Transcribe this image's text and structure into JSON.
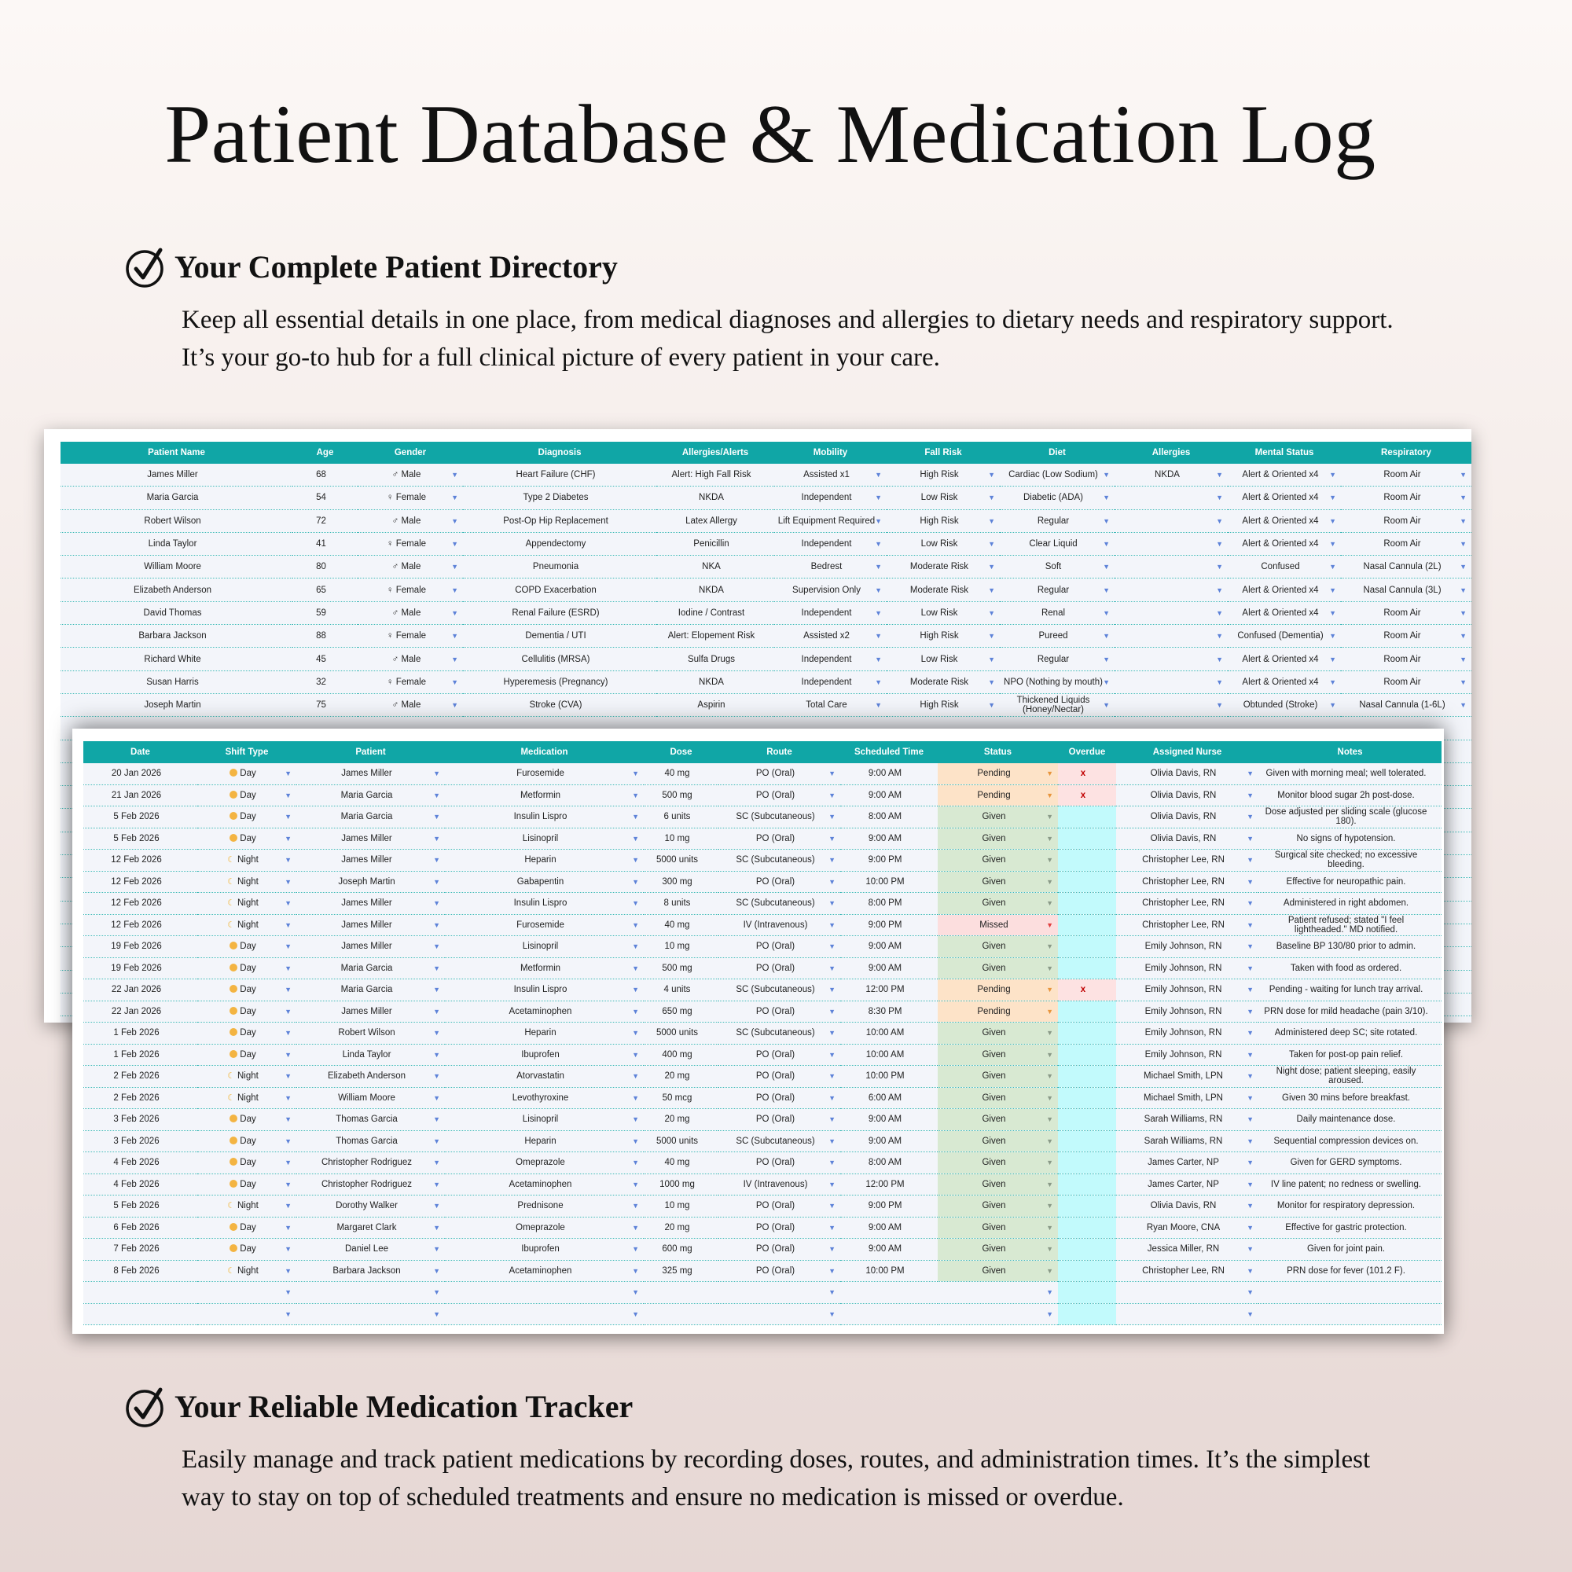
{
  "title": "Patient Database & Medication Log",
  "section1": {
    "heading": "Your Complete Patient Directory",
    "text": "Keep all essential details in one place, from medical diagnoses and allergies to dietary needs and respiratory support. It’s your go-to hub for a full clinical picture of every patient in your care."
  },
  "section2": {
    "heading": "Your Reliable Medication Tracker",
    "text": "Easily manage and track patient medications by recording doses, routes, and administration times. It’s the simplest way to stay on top of scheduled treatments and ensure no medication is missed or overdue."
  },
  "icons": {
    "section": "check-circle-icon",
    "dropdown": "dropdown-arrow-icon",
    "day": "sun-icon",
    "night": "moon-icon"
  },
  "colors": {
    "header": "#10a6a6",
    "pending": "#fde3c8",
    "given": "#d8e9d2",
    "missed": "#fcdede",
    "overdue": "#c2fafc",
    "overdue_flag": "#c00000"
  },
  "patients": {
    "columns": [
      "Patient Name",
      "Age",
      "Gender",
      "Diagnosis",
      "Allergies/Alerts",
      "Mobility",
      "Fall Risk",
      "Diet",
      "Allergies",
      "Mental Status",
      "Respiratory"
    ],
    "rows": [
      [
        "James Miller",
        "68",
        "♂ Male",
        "Heart Failure (CHF)",
        "Alert: High Fall Risk",
        "Assisted x1",
        "High Risk",
        "Cardiac (Low Sodium)",
        "NKDA",
        "Alert & Oriented x4",
        "Room Air"
      ],
      [
        "Maria Garcia",
        "54",
        "♀ Female",
        "Type 2 Diabetes",
        "NKDA",
        "Independent",
        "Low Risk",
        "Diabetic (ADA)",
        "",
        "Alert & Oriented x4",
        "Room Air"
      ],
      [
        "Robert Wilson",
        "72",
        "♂ Male",
        "Post-Op Hip Replacement",
        "Latex Allergy",
        "Lift Equipment Required",
        "High Risk",
        "Regular",
        "",
        "Alert & Oriented x4",
        "Room Air"
      ],
      [
        "Linda Taylor",
        "41",
        "♀ Female",
        "Appendectomy",
        "Penicillin",
        "Independent",
        "Low Risk",
        "Clear Liquid",
        "",
        "Alert & Oriented x4",
        "Room Air"
      ],
      [
        "William Moore",
        "80",
        "♂ Male",
        "Pneumonia",
        "NKA",
        "Bedrest",
        "Moderate Risk",
        "Soft",
        "",
        "Confused",
        "Nasal Cannula (2L)"
      ],
      [
        "Elizabeth Anderson",
        "65",
        "♀ Female",
        "COPD Exacerbation",
        "NKDA",
        "Supervision Only",
        "Moderate Risk",
        "Regular",
        "",
        "Alert & Oriented x4",
        "Nasal Cannula (3L)"
      ],
      [
        "David Thomas",
        "59",
        "♂ Male",
        "Renal Failure (ESRD)",
        "Iodine / Contrast",
        "Independent",
        "Low Risk",
        "Renal",
        "",
        "Alert & Oriented x4",
        "Room Air"
      ],
      [
        "Barbara Jackson",
        "88",
        "♀ Female",
        "Dementia / UTI",
        "Alert: Elopement Risk",
        "Assisted x2",
        "High Risk",
        "Pureed",
        "",
        "Confused (Dementia)",
        "Room Air"
      ],
      [
        "Richard White",
        "45",
        "♂ Male",
        "Cellulitis (MRSA)",
        "Sulfa Drugs",
        "Independent",
        "Low Risk",
        "Regular",
        "",
        "Alert & Oriented x4",
        "Room Air"
      ],
      [
        "Susan Harris",
        "32",
        "♀ Female",
        "Hyperemesis (Pregnancy)",
        "NKDA",
        "Independent",
        "Moderate Risk",
        "NPO (Nothing by mouth)",
        "",
        "Alert & Oriented x4",
        "Room Air"
      ],
      [
        "Joseph Martin",
        "75",
        "♂ Male",
        "Stroke (CVA)",
        "Aspirin",
        "Total Care",
        "High Risk",
        "Thickened Liquids (Honey/Nectar)",
        "",
        "Obtunded (Stroke)",
        "Nasal Cannula (1-6L)"
      ]
    ]
  },
  "medications": {
    "columns": [
      "Date",
      "Shift Type",
      "Patient",
      "Medication",
      "Dose",
      "Route",
      "Scheduled Time",
      "Status",
      "Overdue",
      "Assigned Nurse",
      "Notes"
    ],
    "overdue_mark": "x",
    "rows": [
      [
        "20 Jan 2026",
        "Day",
        "James Miller",
        "Furosemide",
        "40 mg",
        "PO (Oral)",
        "9:00 AM",
        "Pending",
        "x",
        "Olivia Davis, RN",
        "Given with morning meal; well tolerated."
      ],
      [
        "21 Jan 2026",
        "Day",
        "Maria Garcia",
        "Metformin",
        "500 mg",
        "PO (Oral)",
        "9:00 AM",
        "Pending",
        "x",
        "Olivia Davis, RN",
        "Monitor blood sugar 2h post-dose."
      ],
      [
        "5 Feb 2026",
        "Day",
        "Maria Garcia",
        "Insulin Lispro",
        "6 units",
        "SC (Subcutaneous)",
        "8:00 AM",
        "Given",
        "",
        "Olivia Davis, RN",
        "Dose adjusted per sliding scale (glucose 180)."
      ],
      [
        "5 Feb 2026",
        "Day",
        "James Miller",
        "Lisinopril",
        "10 mg",
        "PO (Oral)",
        "9:00 AM",
        "Given",
        "",
        "Olivia Davis, RN",
        "No signs of hypotension."
      ],
      [
        "12 Feb 2026",
        "Night",
        "James Miller",
        "Heparin",
        "5000 units",
        "SC (Subcutaneous)",
        "9:00 PM",
        "Given",
        "",
        "Christopher Lee, RN",
        "Surgical site checked; no excessive bleeding."
      ],
      [
        "12 Feb 2026",
        "Night",
        "Joseph Martin",
        "Gabapentin",
        "300 mg",
        "PO (Oral)",
        "10:00 PM",
        "Given",
        "",
        "Christopher Lee, RN",
        "Effective for neuropathic pain."
      ],
      [
        "12 Feb 2026",
        "Night",
        "James Miller",
        "Insulin Lispro",
        "8 units",
        "SC (Subcutaneous)",
        "8:00 PM",
        "Given",
        "",
        "Christopher Lee, RN",
        "Administered in right abdomen."
      ],
      [
        "12 Feb 2026",
        "Night",
        "James Miller",
        "Furosemide",
        "40 mg",
        "IV (Intravenous)",
        "9:00 PM",
        "Missed",
        "",
        "Christopher Lee, RN",
        "Patient refused; stated \"I feel lightheaded.\" MD notified."
      ],
      [
        "19 Feb 2026",
        "Day",
        "James Miller",
        "Lisinopril",
        "10 mg",
        "PO (Oral)",
        "9:00 AM",
        "Given",
        "",
        "Emily Johnson, RN",
        "Baseline BP 130/80 prior to admin."
      ],
      [
        "19 Feb 2026",
        "Day",
        "Maria Garcia",
        "Metformin",
        "500 mg",
        "PO (Oral)",
        "9:00 AM",
        "Given",
        "",
        "Emily Johnson, RN",
        "Taken with food as ordered."
      ],
      [
        "22 Jan 2026",
        "Day",
        "Maria Garcia",
        "Insulin Lispro",
        "4 units",
        "SC (Subcutaneous)",
        "12:00 PM",
        "Pending",
        "x",
        "Emily Johnson, RN",
        "Pending - waiting for lunch tray arrival."
      ],
      [
        "22 Jan 2026",
        "Day",
        "James Miller",
        "Acetaminophen",
        "650 mg",
        "PO (Oral)",
        "8:30 PM",
        "Pending",
        "",
        "Emily Johnson, RN",
        "PRN dose for mild headache (pain 3/10)."
      ],
      [
        "1 Feb 2026",
        "Day",
        "Robert Wilson",
        "Heparin",
        "5000 units",
        "SC (Subcutaneous)",
        "10:00 AM",
        "Given",
        "",
        "Emily Johnson, RN",
        "Administered deep SC; site rotated."
      ],
      [
        "1 Feb 2026",
        "Day",
        "Linda Taylor",
        "Ibuprofen",
        "400 mg",
        "PO (Oral)",
        "10:00 AM",
        "Given",
        "",
        "Emily Johnson, RN",
        "Taken for post-op pain relief."
      ],
      [
        "2 Feb 2026",
        "Night",
        "Elizabeth Anderson",
        "Atorvastatin",
        "20 mg",
        "PO (Oral)",
        "10:00 PM",
        "Given",
        "",
        "Michael Smith, LPN",
        "Night dose; patient sleeping, easily aroused."
      ],
      [
        "2 Feb 2026",
        "Night",
        "William Moore",
        "Levothyroxine",
        "50 mcg",
        "PO (Oral)",
        "6:00 AM",
        "Given",
        "",
        "Michael Smith, LPN",
        "Given 30 mins before breakfast."
      ],
      [
        "3 Feb 2026",
        "Day",
        "Thomas Garcia",
        "Lisinopril",
        "20 mg",
        "PO (Oral)",
        "9:00 AM",
        "Given",
        "",
        "Sarah Williams, RN",
        "Daily maintenance dose."
      ],
      [
        "3 Feb 2026",
        "Day",
        "Thomas Garcia",
        "Heparin",
        "5000 units",
        "SC (Subcutaneous)",
        "9:00 AM",
        "Given",
        "",
        "Sarah Williams, RN",
        "Sequential compression devices on."
      ],
      [
        "4 Feb 2026",
        "Day",
        "Christopher Rodriguez",
        "Omeprazole",
        "40 mg",
        "PO (Oral)",
        "8:00 AM",
        "Given",
        "",
        "James Carter, NP",
        "Given for GERD symptoms."
      ],
      [
        "4 Feb 2026",
        "Day",
        "Christopher Rodriguez",
        "Acetaminophen",
        "1000 mg",
        "IV (Intravenous)",
        "12:00 PM",
        "Given",
        "",
        "James Carter, NP",
        "IV line patent; no redness or swelling."
      ],
      [
        "5 Feb 2026",
        "Night",
        "Dorothy Walker",
        "Prednisone",
        "10 mg",
        "PO (Oral)",
        "9:00 PM",
        "Given",
        "",
        "Olivia Davis, RN",
        "Monitor for respiratory depression."
      ],
      [
        "6 Feb 2026",
        "Day",
        "Margaret Clark",
        "Omeprazole",
        "20 mg",
        "PO (Oral)",
        "9:00 AM",
        "Given",
        "",
        "Ryan Moore, CNA",
        "Effective for gastric protection."
      ],
      [
        "7 Feb 2026",
        "Day",
        "Daniel Lee",
        "Ibuprofen",
        "600 mg",
        "PO (Oral)",
        "9:00 AM",
        "Given",
        "",
        "Jessica Miller, RN",
        "Given for joint pain."
      ],
      [
        "8 Feb 2026",
        "Night",
        "Barbara Jackson",
        "Acetaminophen",
        "325 mg",
        "PO (Oral)",
        "10:00 PM",
        "Given",
        "",
        "Christopher Lee, RN",
        "PRN dose for fever (101.2 F)."
      ],
      [
        "",
        "",
        "",
        "",
        "",
        "",
        "",
        "",
        "",
        "",
        ""
      ],
      [
        "",
        "",
        "",
        "",
        "",
        "",
        "",
        "",
        "",
        "",
        ""
      ]
    ]
  }
}
